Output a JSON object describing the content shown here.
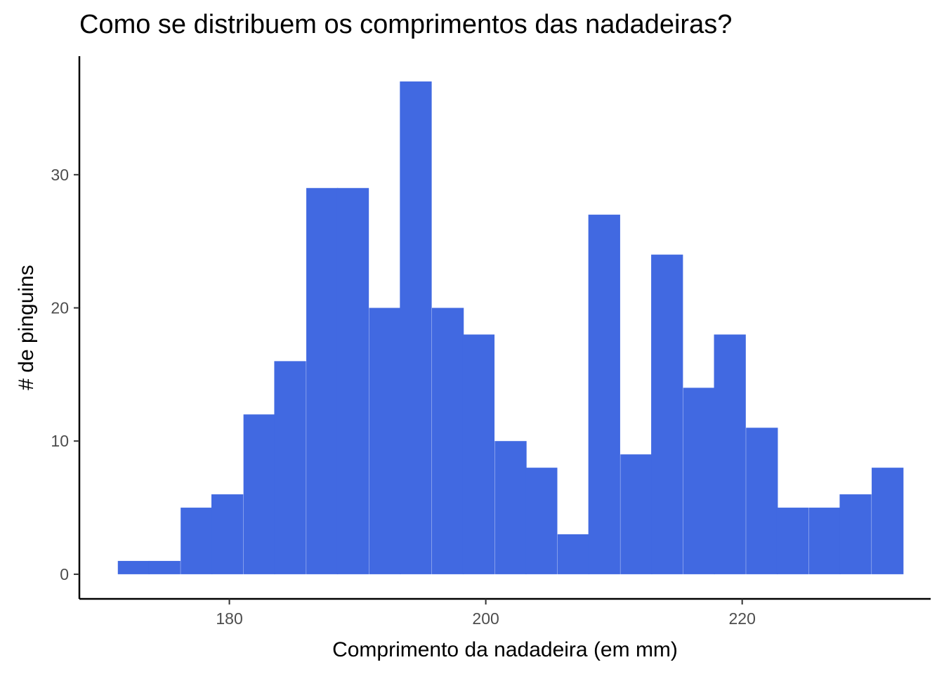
{
  "chart_data": {
    "type": "bar",
    "title": "Como se distribuem os comprimentos das nadadeiras?",
    "xlabel": "Comprimento da nadadeira (em mm)",
    "ylabel": "# de pinguins",
    "xlim": [
      168.3,
      234.7
    ],
    "ylim": [
      -1.85,
      38.9
    ],
    "x_ticks": [
      180,
      200,
      220
    ],
    "y_ticks": [
      0,
      10,
      20,
      30
    ],
    "bin_width": 2.448,
    "bins": [
      {
        "start": 171.3,
        "count": 1
      },
      {
        "start": 173.7,
        "count": 1
      },
      {
        "start": 176.2,
        "count": 5
      },
      {
        "start": 178.6,
        "count": 6
      },
      {
        "start": 181.1,
        "count": 12
      },
      {
        "start": 183.5,
        "count": 16
      },
      {
        "start": 186.0,
        "count": 29
      },
      {
        "start": 188.4,
        "count": 29
      },
      {
        "start": 190.9,
        "count": 20
      },
      {
        "start": 193.3,
        "count": 37
      },
      {
        "start": 195.8,
        "count": 20
      },
      {
        "start": 198.2,
        "count": 18
      },
      {
        "start": 200.7,
        "count": 10
      },
      {
        "start": 203.1,
        "count": 8
      },
      {
        "start": 205.6,
        "count": 3
      },
      {
        "start": 208.0,
        "count": 27
      },
      {
        "start": 210.5,
        "count": 9
      },
      {
        "start": 212.9,
        "count": 24
      },
      {
        "start": 215.4,
        "count": 14
      },
      {
        "start": 217.8,
        "count": 18
      },
      {
        "start": 220.3,
        "count": 11
      },
      {
        "start": 222.7,
        "count": 5
      },
      {
        "start": 225.2,
        "count": 5
      },
      {
        "start": 227.6,
        "count": 6
      },
      {
        "start": 230.1,
        "count": 8
      }
    ],
    "bar_color": "#4169e1",
    "grid": false,
    "legend": "none"
  }
}
